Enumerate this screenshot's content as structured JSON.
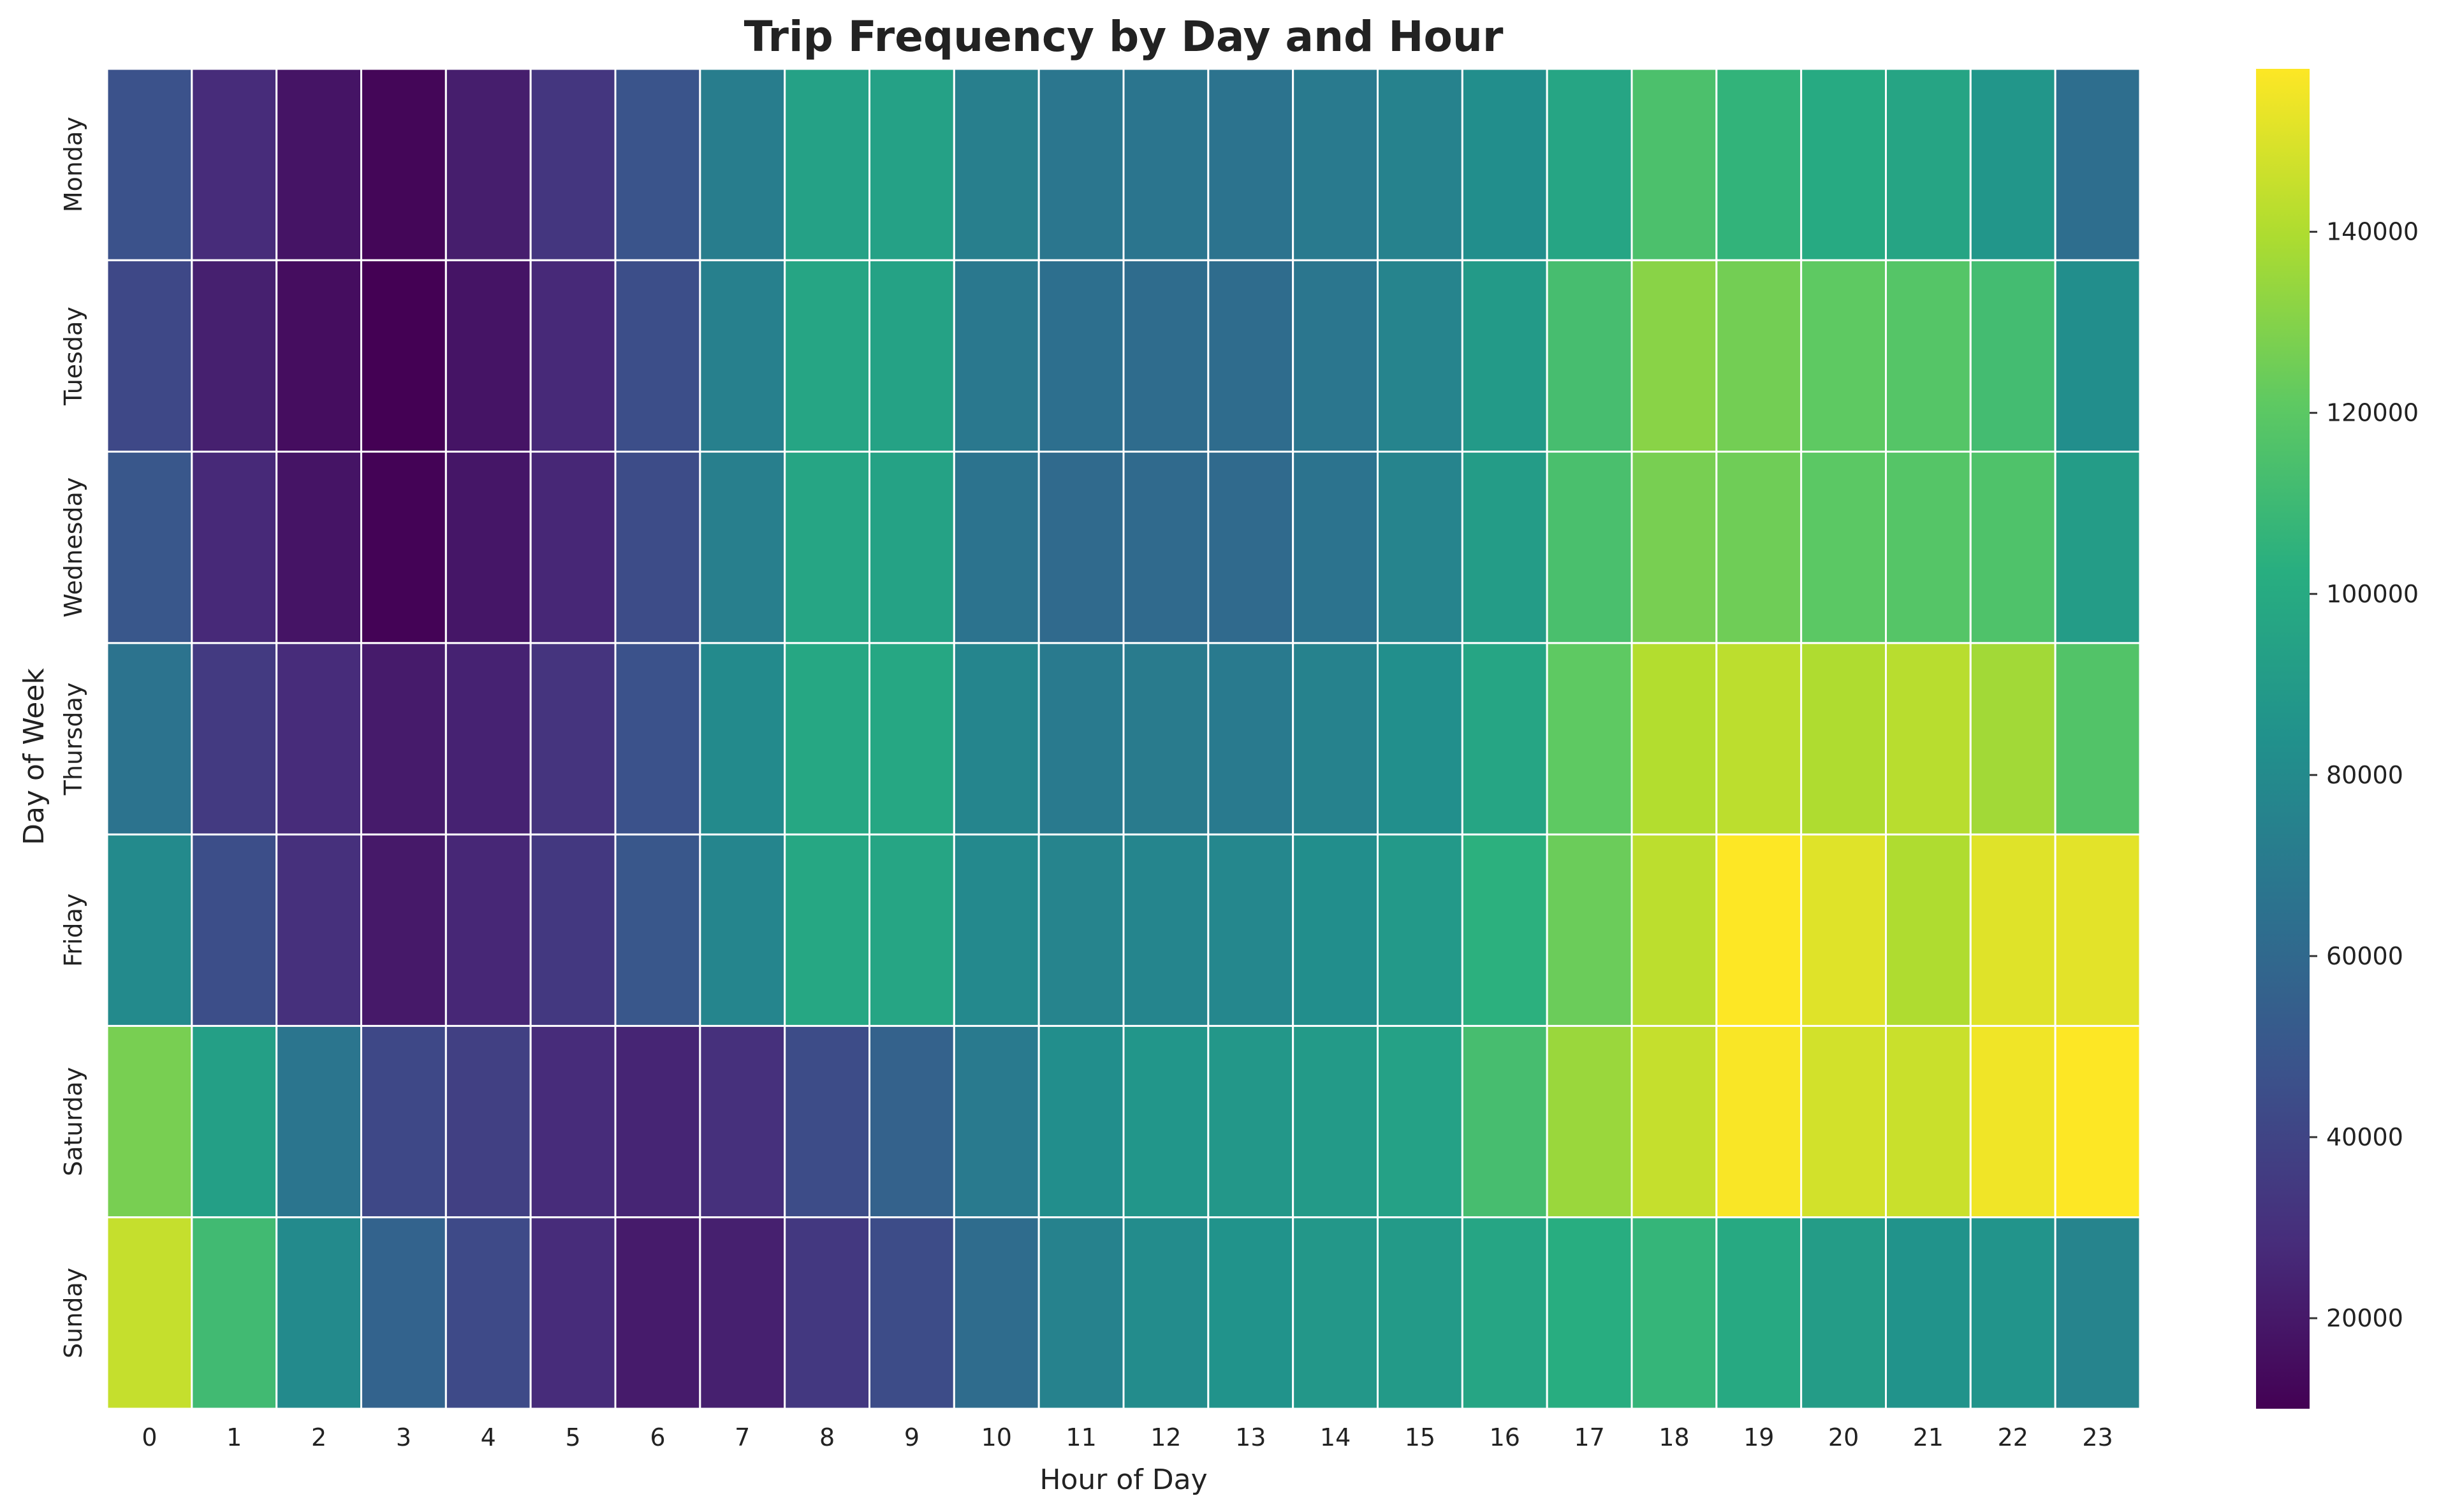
{
  "chart_data": {
    "type": "heatmap",
    "title": "Trip Frequency by Day and Hour",
    "xlabel": "Hour of Day",
    "ylabel": "Day of Week",
    "x": [
      "0",
      "1",
      "2",
      "3",
      "4",
      "5",
      "6",
      "7",
      "8",
      "9",
      "10",
      "11",
      "12",
      "13",
      "14",
      "15",
      "16",
      "17",
      "18",
      "19",
      "20",
      "21",
      "22",
      "23"
    ],
    "y": [
      "Monday",
      "Tuesday",
      "Wednesday",
      "Thursday",
      "Friday",
      "Saturday",
      "Sunday"
    ],
    "values": [
      [
        47000,
        28000,
        18000,
        12000,
        22000,
        33000,
        48000,
        72000,
        94000,
        94000,
        73000,
        68000,
        67000,
        66000,
        70000,
        75000,
        82000,
        97000,
        115000,
        106000,
        100000,
        96000,
        87000,
        63000
      ],
      [
        42000,
        23000,
        15000,
        10000,
        18000,
        27000,
        45000,
        74000,
        97000,
        95000,
        69000,
        64000,
        62000,
        62000,
        68000,
        76000,
        90000,
        113000,
        131000,
        126000,
        121000,
        118000,
        112000,
        82000
      ],
      [
        50000,
        27000,
        18000,
        11000,
        19000,
        26000,
        44000,
        73000,
        97000,
        95000,
        66000,
        61000,
        61000,
        61000,
        66000,
        76000,
        91000,
        114000,
        127000,
        125000,
        120000,
        118000,
        116000,
        91000
      ],
      [
        66000,
        35000,
        28000,
        21000,
        24000,
        32000,
        47000,
        80000,
        98000,
        98000,
        77000,
        70000,
        71000,
        70000,
        75000,
        83000,
        97000,
        121000,
        141000,
        143000,
        140000,
        142000,
        137000,
        117000
      ],
      [
        80000,
        45000,
        30000,
        20000,
        26000,
        34000,
        50000,
        77000,
        98000,
        97000,
        79000,
        76000,
        77000,
        78000,
        82000,
        89000,
        104000,
        124000,
        143000,
        158000,
        151000,
        140000,
        151000,
        152000
      ],
      [
        127000,
        93000,
        67000,
        42000,
        38000,
        28000,
        25000,
        30000,
        44000,
        56000,
        70000,
        82000,
        87000,
        88000,
        90000,
        94000,
        113000,
        135000,
        145000,
        157000,
        148000,
        146000,
        155000,
        160000
      ],
      [
        145000,
        111000,
        80000,
        57000,
        43000,
        28000,
        21000,
        23000,
        34000,
        44000,
        62000,
        75000,
        81000,
        85000,
        88000,
        90000,
        97000,
        102000,
        107000,
        99000,
        91000,
        85000,
        86000,
        76000
      ]
    ],
    "vmin": 10000,
    "vmax": 158000,
    "colormap": "viridis",
    "colorbar_ticks": [
      20000,
      40000,
      60000,
      80000,
      100000,
      120000,
      140000
    ],
    "colorbar_tick_labels": [
      "20000",
      "40000",
      "60000",
      "80000",
      "100000",
      "120000",
      "140000"
    ]
  }
}
